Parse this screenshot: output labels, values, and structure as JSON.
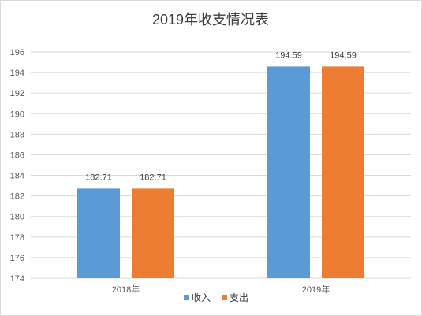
{
  "chart_data": {
    "type": "bar",
    "title": "2019年收支情况表",
    "categories": [
      "2018年",
      "2019年"
    ],
    "series": [
      {
        "name": "收入",
        "values": [
          182.71,
          194.59
        ],
        "color": "#5b9bd5"
      },
      {
        "name": "支出",
        "values": [
          182.71,
          194.59
        ],
        "color": "#ed7d31"
      }
    ],
    "data_labels": [
      [
        "182.71",
        "194.59"
      ],
      [
        "182.71",
        "194.59"
      ]
    ],
    "ylim": [
      174,
      196
    ],
    "y_ticks": [
      "174",
      "176",
      "178",
      "180",
      "182",
      "184",
      "186",
      "188",
      "190",
      "192",
      "194",
      "196"
    ],
    "xlabel": "",
    "ylabel": "",
    "grid": true,
    "legend_position": "bottom"
  }
}
